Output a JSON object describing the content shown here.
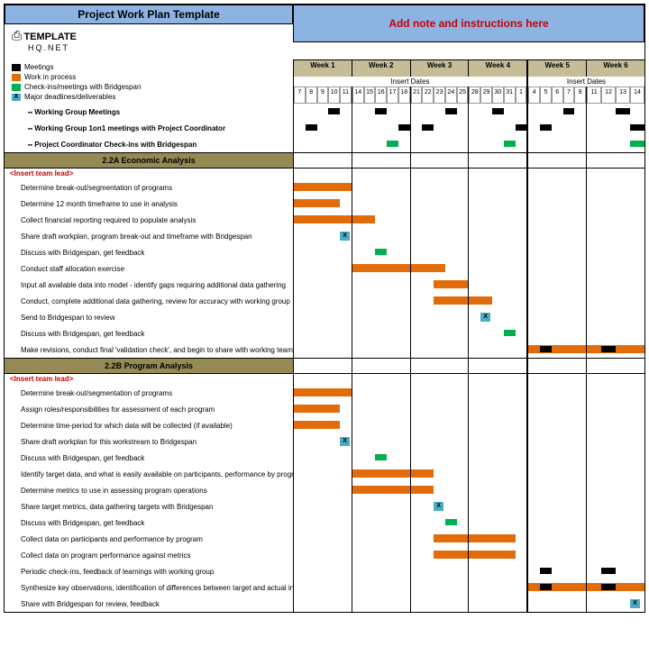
{
  "title": "Project Work Plan Template",
  "note_text": "Add note and instructions here",
  "logo": {
    "main": "TEMPLATE",
    "sub": "HQ.NET"
  },
  "legend": [
    {
      "label": "Meetings",
      "color": "#000000"
    },
    {
      "label": "Work in process",
      "color": "#e36c0a"
    },
    {
      "label": "Check-ins/meetings with Bridgespan",
      "color": "#00b050"
    },
    {
      "label": "Major deadlines/deliverables",
      "marker": "X",
      "bg": "#4bacc6"
    }
  ],
  "weeks": [
    "Week 1",
    "Week 2",
    "Week 3",
    "Week 4",
    "Week 5",
    "Week 6"
  ],
  "insert_dates_label": "Insert Dates",
  "days": [
    [
      "7",
      "8",
      "9",
      "10",
      "11"
    ],
    [
      "14",
      "15",
      "16",
      "17",
      "18"
    ],
    [
      "21",
      "22",
      "23",
      "24",
      "25"
    ],
    [
      "28",
      "29",
      "30",
      "31",
      "1"
    ],
    [
      "4",
      "5",
      "6",
      "7",
      "8"
    ],
    [
      "11",
      "12",
      "13",
      "14"
    ]
  ],
  "meeting_rows": [
    {
      "label": "Working Group Meetings",
      "blacks": [
        [
          0,
          3
        ],
        [
          1,
          2
        ],
        [
          2,
          3
        ],
        [
          3,
          2
        ],
        [
          4,
          3
        ],
        [
          5,
          2
        ]
      ]
    },
    {
      "label": "Working Group 1on1 meetings with Project Coordinator",
      "blacks": [
        [
          0,
          1
        ],
        [
          1,
          4
        ],
        [
          2,
          1
        ],
        [
          3,
          4
        ],
        [
          4,
          1
        ],
        [
          5,
          3
        ]
      ]
    },
    {
      "label": "Project Coordinator Check-ins with Bridgespan",
      "greens": [
        [
          1,
          3
        ],
        [
          3,
          3
        ],
        [
          5,
          3
        ]
      ]
    }
  ],
  "sections": [
    {
      "header": "2.2A Economic Analysis",
      "team_lead": "<Insert team lead>",
      "tasks": [
        {
          "label": "Determine break-out/segmentation of programs",
          "bars": [
            {
              "w": 0,
              "start": 0,
              "len": 5,
              "type": "orange"
            }
          ]
        },
        {
          "label": "Determine 12 month timeframe to use in analysis",
          "bars": [
            {
              "w": 0,
              "start": 0,
              "len": 4,
              "type": "orange"
            }
          ]
        },
        {
          "label": "Collect financial reporting required to populate analysis",
          "bars": [
            {
              "w": 0,
              "start": 0,
              "len": 5,
              "type": "orange"
            },
            {
              "w": 1,
              "start": 0,
              "len": 2,
              "type": "orange"
            }
          ]
        },
        {
          "label": "Share draft workplan, program break-out and timeframe with Bridgespan",
          "markers": [
            {
              "w": 0,
              "d": 4
            }
          ]
        },
        {
          "label": "Discuss with Bridgespan, get feedback",
          "bars": [
            {
              "w": 1,
              "start": 2,
              "len": 1,
              "type": "green"
            }
          ]
        },
        {
          "label": "Conduct staff allocation exercise",
          "bars": [
            {
              "w": 1,
              "start": 0,
              "len": 5,
              "type": "orange"
            },
            {
              "w": 2,
              "start": 0,
              "len": 3,
              "type": "orange"
            }
          ]
        },
        {
          "label": "Input all available data into model - identify gaps requiring additional data gathering",
          "bars": [
            {
              "w": 2,
              "start": 2,
              "len": 3,
              "type": "orange"
            }
          ]
        },
        {
          "label": "Conduct, complete additional data gathering, review for accuracy with working group",
          "bars": [
            {
              "w": 2,
              "start": 2,
              "len": 3,
              "type": "orange"
            },
            {
              "w": 3,
              "start": 0,
              "len": 2,
              "type": "orange"
            }
          ]
        },
        {
          "label": "Send to Bridgespan to review",
          "markers": [
            {
              "w": 3,
              "d": 1
            }
          ]
        },
        {
          "label": "Discuss with Bridgespan, get feedback",
          "bars": [
            {
              "w": 3,
              "start": 3,
              "len": 1,
              "type": "green"
            }
          ]
        },
        {
          "label": "Make revisions, conduct final 'validation check', and begin to share with working team",
          "bars": [
            {
              "w": 4,
              "start": 0,
              "len": 5,
              "type": "orange"
            },
            {
              "w": 5,
              "start": 0,
              "len": 4,
              "type": "orange"
            },
            {
              "w": 4,
              "start": 1,
              "len": 1,
              "type": "black"
            },
            {
              "w": 5,
              "start": 1,
              "len": 1,
              "type": "black"
            }
          ]
        }
      ]
    },
    {
      "header": "2.2B Program Analysis",
      "team_lead": "<Insert team lead>",
      "tasks": [
        {
          "label": "Determine  break-out/segmentation of programs",
          "bars": [
            {
              "w": 0,
              "start": 0,
              "len": 5,
              "type": "orange"
            }
          ]
        },
        {
          "label": "Assign roles/responsibilities for assessment of each program",
          "bars": [
            {
              "w": 0,
              "start": 0,
              "len": 4,
              "type": "orange"
            }
          ]
        },
        {
          "label": "Determine time-period for which data will be collected (if available)",
          "bars": [
            {
              "w": 0,
              "start": 0,
              "len": 4,
              "type": "orange"
            }
          ]
        },
        {
          "label": "Share draft workplan for this workstream to Bridgespan",
          "markers": [
            {
              "w": 0,
              "d": 4
            }
          ]
        },
        {
          "label": "Discuss with Bridgespan, get feedback",
          "bars": [
            {
              "w": 1,
              "start": 2,
              "len": 1,
              "type": "green"
            }
          ]
        },
        {
          "label": "Identify target data, and what is easily available on participants, performance by program",
          "bars": [
            {
              "w": 1,
              "start": 0,
              "len": 5,
              "type": "orange"
            },
            {
              "w": 2,
              "start": 0,
              "len": 2,
              "type": "orange"
            }
          ]
        },
        {
          "label": "Determine metrics to use in assessing program operations",
          "bars": [
            {
              "w": 1,
              "start": 0,
              "len": 5,
              "type": "orange"
            },
            {
              "w": 2,
              "start": 0,
              "len": 2,
              "type": "orange"
            }
          ]
        },
        {
          "label": "Share target metrics, data gathering targets with Bridgespan",
          "markers": [
            {
              "w": 2,
              "d": 2
            }
          ]
        },
        {
          "label": "Discuss with Bridgespan, get feedback",
          "bars": [
            {
              "w": 2,
              "start": 3,
              "len": 1,
              "type": "green"
            }
          ]
        },
        {
          "label": "Collect data on participants and performance by program",
          "bars": [
            {
              "w": 2,
              "start": 2,
              "len": 3,
              "type": "orange"
            },
            {
              "w": 3,
              "start": 0,
              "len": 4,
              "type": "orange"
            }
          ]
        },
        {
          "label": "Collect data on program performance against metrics",
          "bars": [
            {
              "w": 2,
              "start": 2,
              "len": 3,
              "type": "orange"
            },
            {
              "w": 3,
              "start": 0,
              "len": 4,
              "type": "orange"
            }
          ]
        },
        {
          "label": "Periodic check-ins, feedback of learnings with working group",
          "bars": [
            {
              "w": 4,
              "start": 1,
              "len": 1,
              "type": "black"
            },
            {
              "w": 5,
              "start": 1,
              "len": 1,
              "type": "black"
            }
          ]
        },
        {
          "label": "Synthesize key observations, identification of differences between target and actual in program execution, participants, performance",
          "bars": [
            {
              "w": 4,
              "start": 0,
              "len": 5,
              "type": "orange"
            },
            {
              "w": 5,
              "start": 0,
              "len": 4,
              "type": "orange"
            },
            {
              "w": 4,
              "start": 1,
              "len": 1,
              "type": "black"
            },
            {
              "w": 5,
              "start": 1,
              "len": 1,
              "type": "black"
            }
          ]
        },
        {
          "label": "Share with Bridgespan for review, feedback",
          "markers": [
            {
              "w": 5,
              "d": 3
            }
          ]
        }
      ]
    }
  ],
  "colors": {
    "header_bg": "#8db3e2",
    "week_bg": "#c4bd97",
    "section_bg": "#948a54",
    "orange": "#e36c0a",
    "green": "#00b050",
    "black": "#000000",
    "xmarker": "#4bacc6",
    "red_text": "#c00000"
  }
}
